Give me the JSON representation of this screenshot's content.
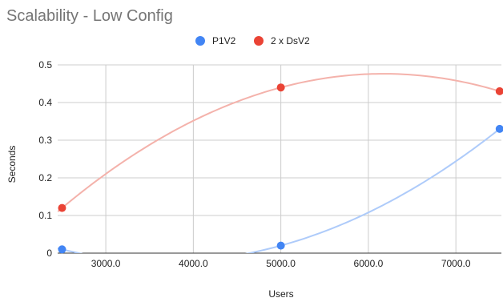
{
  "chart_data": {
    "type": "scatter",
    "title": "Scalability - Low Config",
    "xlabel": "Users",
    "ylabel": "Seconds",
    "xlim": [
      2450,
      7520
    ],
    "ylim": [
      0,
      0.5
    ],
    "x_ticks": [
      3000,
      4000,
      5000,
      6000,
      7000
    ],
    "x_tick_labels": [
      "3000.0",
      "4000.0",
      "5000.0",
      "6000.0",
      "7000.0"
    ],
    "y_ticks": [
      0,
      0.1,
      0.2,
      0.3,
      0.4,
      0.5
    ],
    "y_tick_labels": [
      "0",
      "0.1",
      "0.2",
      "0.3",
      "0.4",
      "0.5"
    ],
    "grid": true,
    "legend_position": "top",
    "trendline": "polynomial",
    "series": [
      {
        "name": "P1V2",
        "color": "#4285f4",
        "trend_color": "#aecbfa",
        "points": [
          {
            "x": 2500,
            "y": 0.01
          },
          {
            "x": 5000,
            "y": 0.02
          },
          {
            "x": 7500,
            "y": 0.33
          }
        ]
      },
      {
        "name": "2 x DsV2",
        "color": "#ea4335",
        "trend_color": "#f4b2ab",
        "points": [
          {
            "x": 2500,
            "y": 0.12
          },
          {
            "x": 5000,
            "y": 0.44
          },
          {
            "x": 7500,
            "y": 0.43
          }
        ]
      }
    ]
  }
}
